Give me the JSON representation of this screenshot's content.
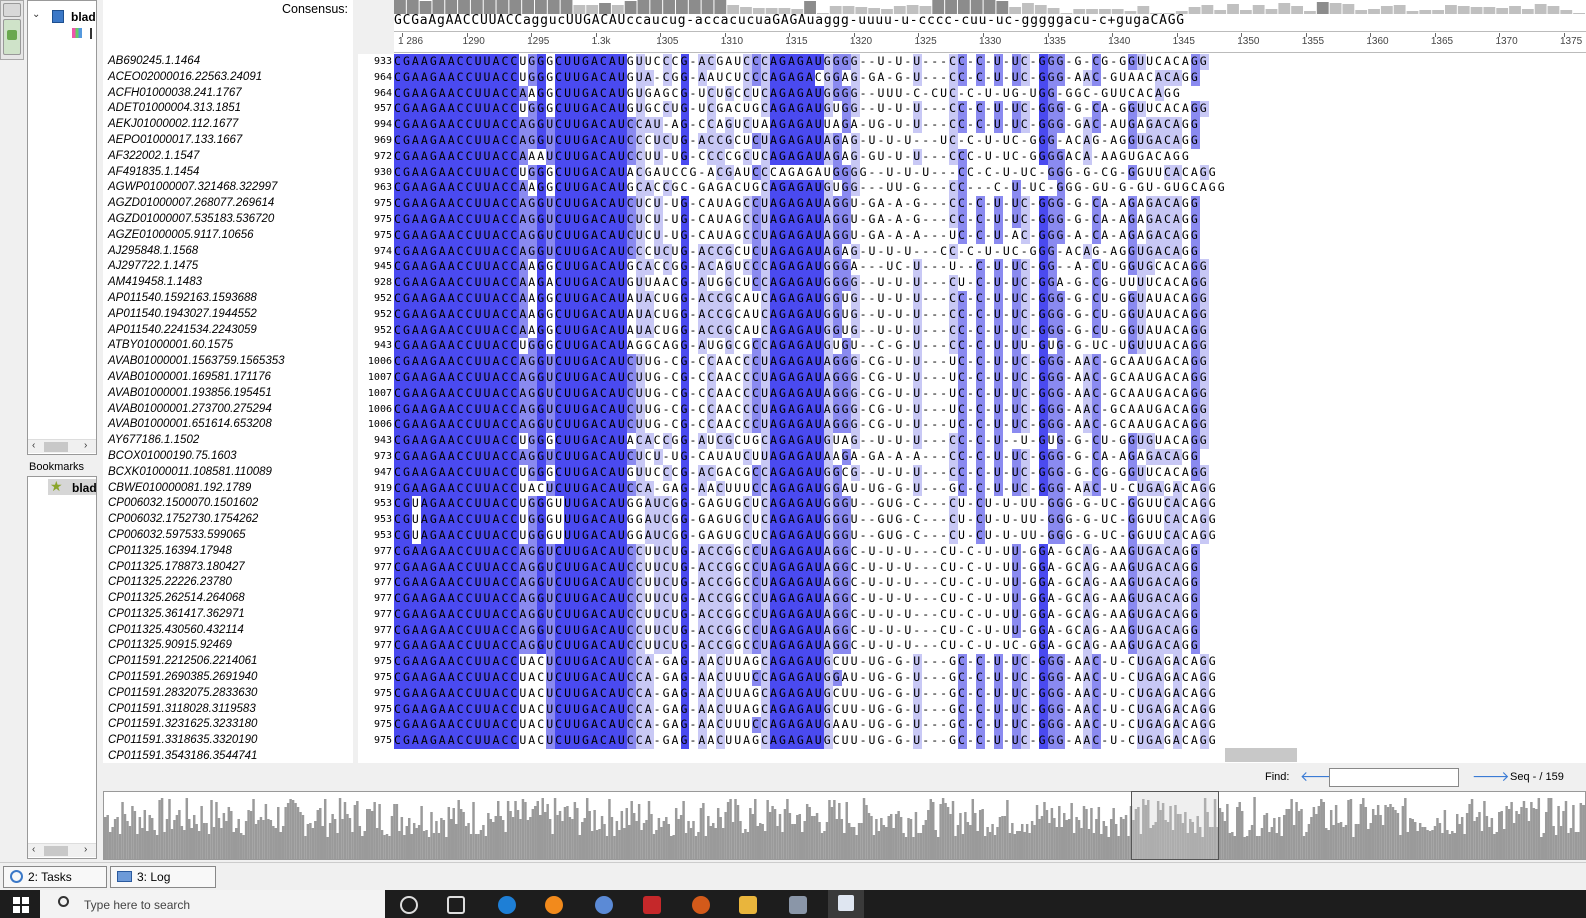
{
  "consensus": {
    "label": "Consensus:",
    "sequence": "GCGaAgAACCUUACCaggucUUGACAUccaucug-accacucuaGAGAuaggg-uuuu-u-cccc-cuu-uc-gggggacu-c+gugaCAGG"
  },
  "ruler": {
    "ticks": [
      "1 286",
      "1290",
      "1295",
      "1.3k",
      "1305",
      "1310",
      "1315",
      "1320",
      "1325",
      "1330",
      "1335",
      "1340",
      "1345",
      "1350",
      "1355",
      "1360",
      "1365",
      "1370",
      "1375"
    ]
  },
  "left_panel": {
    "object_label": "blad",
    "bookmarks_header": "Bookmarks",
    "bookmark_label": "blad"
  },
  "sequences": [
    {
      "name": "AB690245.1.1464",
      "start": "933"
    },
    {
      "name": "ACEO02000016.22563.24091",
      "start": "964"
    },
    {
      "name": "ACFH01000038.241.1767",
      "start": "964"
    },
    {
      "name": "ADET01000004.313.1851",
      "start": "957"
    },
    {
      "name": "AEKJ01000002.112.1677",
      "start": "994"
    },
    {
      "name": "AEPO01000017.133.1667",
      "start": "969"
    },
    {
      "name": "AF322002.1.1547",
      "start": "972"
    },
    {
      "name": "AF491835.1.1454",
      "start": "930"
    },
    {
      "name": "AGWP01000007.321468.322997",
      "start": "963"
    },
    {
      "name": "AGZD01000007.268077.269614",
      "start": "975"
    },
    {
      "name": "AGZD01000007.535183.536720",
      "start": "975"
    },
    {
      "name": "AGZE01000005.9117.10656",
      "start": "975"
    },
    {
      "name": "AJ295848.1.1568",
      "start": "974"
    },
    {
      "name": "AJ297722.1.1475",
      "start": "945"
    },
    {
      "name": "AM419458.1.1483",
      "start": "928"
    },
    {
      "name": "AP011540.1592163.1593688",
      "start": "952"
    },
    {
      "name": "AP011540.1943027.1944552",
      "start": "952"
    },
    {
      "name": "AP011540.2241534.2243059",
      "start": "952"
    },
    {
      "name": "ATBY01000001.60.1575",
      "start": "943"
    },
    {
      "name": "AVAB01000001.1563759.1565353",
      "start": "1006"
    },
    {
      "name": "AVAB01000001.169581.171176",
      "start": "1007"
    },
    {
      "name": "AVAB01000001.193856.195451",
      "start": "1007"
    },
    {
      "name": "AVAB01000001.273700.275294",
      "start": "1006"
    },
    {
      "name": "AVAB01000001.651614.653208",
      "start": "1006"
    },
    {
      "name": "AY677186.1.1502",
      "start": "943"
    },
    {
      "name": "BCOX01000190.75.1603",
      "start": "973"
    },
    {
      "name": "BCXK01000011.108581.110089",
      "start": "947"
    },
    {
      "name": "CBWE010000081.192.1789",
      "start": "919"
    },
    {
      "name": "CP006032.1500070.1501602",
      "start": "953"
    },
    {
      "name": "CP006032.1752730.1754262",
      "start": "953"
    },
    {
      "name": "CP006032.597533.599065",
      "start": "953"
    },
    {
      "name": "CP011325.16394.17948",
      "start": "977"
    },
    {
      "name": "CP011325.178873.180427",
      "start": "977"
    },
    {
      "name": "CP011325.22226.23780",
      "start": "977"
    },
    {
      "name": "CP011325.262514.264068",
      "start": "977"
    },
    {
      "name": "CP011325.361417.362971",
      "start": "977"
    },
    {
      "name": "CP011325.430560.432114",
      "start": "977"
    },
    {
      "name": "CP011325.90915.92469",
      "start": "977"
    },
    {
      "name": "CP011591.2212506.2214061",
      "start": "975"
    },
    {
      "name": "CP011591.2690385.2691940",
      "start": "975"
    },
    {
      "name": "CP011591.2832075.2833630",
      "start": "975"
    },
    {
      "name": "CP011591.3118028.3119583",
      "start": "975"
    },
    {
      "name": "CP011591.3231625.3233180",
      "start": "975"
    },
    {
      "name": "CP011591.3318635.3320190",
      "start": "975"
    },
    {
      "name": "CP011591.3543186.3544741",
      "start": ""
    }
  ],
  "rows": [
    "CGAAGAACCUUACCUGGGCUUGACAUGUUCCCG-ACGAUCCCAGAGAUGGGG--U-U-U---CC-C-U-UC-GGG-G-CG-GGUUCACAGG",
    "CGAAGAACCUUACCUGGGCUUGACAUGUA-CGG-AAUCUCCCAGAGACGGAG-GA-G-U---CC-C-U-UC-GGG-AAC-GUAACACAGG",
    "CGAAGAACCUUACCAAGGCUUGACAUGUGAGCG-UCUGCCUCAGAGAUGGGG--UUU-C-CUC-C-U-UG-UGG-GGC-GUUCACAGG",
    "CGAAGAACCUUACCUGGGCUUGACAUGUGCCUG-UCGACUGCAGAGAUGUGG--U-U-U---CC-C-U-UC-GGG-G-CA-GGUUCACAGG",
    "CGAAGAACCUUACCAGGUCUUGACAUCCAU-AG-CCAGUCUAAGAGAUUAGA-UG-U-U---CC-C-U-UC-GGG-GAC-AUGAGACAGG",
    "CGAAGAACCUUACCAGGUCUUGACAUCCCUCUG-ACCGCUCUAGAGAUAGAG-U-U-U---UC-C-U-UC-GGG-ACAG-AGGUGACAGG",
    "CGAAGAACCUUACCAAAUCUUGACAUCCUU-UG-CCCCGCUCAGAGAUAGAG-GU-U-U---CCC-U-UC-GGGGACA-AAGUGACAGG",
    "CGAAGAACCUUACCUGGGCUUGACAUACGAUCCG-ACGAUCCCAGAGAUGGGG--U-U-U---CC-C-U-UC-GGG-G-CG-GGUUCACAGG",
    "CGAAGAACCUUACCAAGGCUUGACAUGCACCGC-GAGACUGCAGAGAUGUGG---UU-G---CC---C-U-UC-GGG-GU-G-GU-GUGCAGG",
    "CGAAGAACCUUACCAGGUCUUGACAUCUCU-UG-CAUAGCCUAGAGAUAGGU-GA-A-G---CC-C-U-UC-GGG-G-CA-AGAGACAGG",
    "CGAAGAACCUUACCAGGUCUUGACAUCUCU-UG-CAUAGCCUAGAGAUAGGU-GA-A-G---CC-C-U-UC-GGG-G-CA-AGAGACAGG",
    "CGAAGAACCUUACCAGGUCUUGACAUCUCU-UG-CAUAGCCUAGAGAUAGGU-GA-A-A---UC-C-U-AC-GGG-A-CA-AGAGACAGG",
    "CGAAGAACCUUACCAGGUCUUGACAUCCCUCUG-ACCGCUCUAGAGAUAGAG-U-U-U---CC-C-U-UC-GGG-ACAG-AGGUGACAGG",
    "CGAAGAACCUUACCAAGGCUUGACAUGCACCGG-ACAGUCCCAGAGAUGGGA---UC-U---U--C-U-UC-GG--A-CU-GGUGCACAGG",
    "CGAAGAACCUUACCAAGACUUGACAUGUUAACG-AUGGCUCCAGAGAUGGGG--U-U-U---CU-C-U-UC-GGA-G-CG-UUUUCACAGG",
    "CGAAGAACCUUACCAAGGCUUGACAUAUACUGG-ACCGCAUCAGAGAUGGUG--U-U-U---CC-C-U-UC-GGG-G-CU-GGUAUACAGG",
    "CGAAGAACCUUACCAAGGCUUGACAUAUACUGG-ACCGCAUCAGAGAUGGUG--U-U-U---CC-C-U-UC-GGG-G-CU-GGUAUACAGG",
    "CGAAGAACCUUACCAAGGCUUGACAUAUACUGG-ACCGCAUCAGAGAUGGUG--U-U-U---CC-C-U-UC-GGG-G-CU-GGUAUACAGG",
    "CGAAGAACCUUACCUGGGCUUGACAUAGGCAGG-AUGGCGCCAGAGAUGUGU--C-G-U---CC-C-U-UU-GUG-G-UC-UGUUUACAGG",
    "CGAAGAACCUUACCAGGUCUUGACAUCUUG-CG-CCAACCCUAGAGAUAGGG-CG-U-U---UC-C-U-UC-GGG-AAC-GCAAUGACAGG",
    "CGAAGAACCUUACCAGGUCUUGACAUCUUG-CG-CCAACCCUAGAGAUAGGG-CG-U-U---UC-C-U-UC-GGG-AAC-GCAAUGACAGG",
    "CGAAGAACCUUACCAGGUCUUGACAUCUUG-CG-CCAACCCUAGAGAUAGGG-CG-U-U---UC-C-U-UC-GGG-AAC-GCAAUGACAGG",
    "CGAAGAACCUUACCAGGUCUUGACAUCUUG-CG-CCAACCCUAGAGAUAGGG-CG-U-U---UC-C-U-UC-GGG-AAC-GCAAUGACAGG",
    "CGAAGAACCUUACCAGGUCUUGACAUCUUG-CG-CCAACCCUAGAGAUAGGG-CG-U-U---UC-C-U-UC-GGG-AAC-GCAAUGACAGG",
    "CGAAGAACCUUACCUGGGCUUGACAUACACCGG-AUCGCUGCAGAGAUGUAG--U-U-U---CC-C-U--U-GUG-G-CU-GGUGUACAGG",
    "CGAAGAACCUUACCAGGUCUUGACAUCUCU-UG-CAUAUCUUAGAGAUAAGA-GA-A-A---CC-C-U-UC-GGG-G-CA-AGAGACAGG",
    "CGAAGAACCUUACCUGGGCUUGACAUGUUCCCG-ACGACGCCAGAGAUGGCG--U-U-U---CC-C-U-UC-GGG-G-CG-GGUUCACAGG",
    "CGAAGAACCUUACCUACUCUUGACAUCCA-GAG-AACUUUCCAGAGAUGGAU-UG-G-U---GC-C-U-UC-GGG-AAC-U-CUGAGACAGG",
    "CGUAGAACCUUACCUGGGUUUGACAUGGAUCGG-GAGUGCUCAGAGAUGGGU--GUG-C---CU-CU-U-UU-GGG-G-UC-GGUUCACAGG",
    "CGUAGAACCUUACCUGGGUUUGACAUGGAUCGG-GAGUGCUCAGAGAUGGGU--GUG-C---CU-CU-U-UU-GGG-G-UC-GGUUCACAGG",
    "CGUAGAACCUUACCUGGGUUUGACAUGGAUCGG-GAGUGCUCAGAGAUGGGU--GUG-C---CU-CU-U-UU-GGG-G-UC-GGUUCACAGG",
    "CGAAGAACCUUACCAGGUCUUGACAUCCUUCUG-ACCGGCCUAGAGAUAGGC-U-U-U---CU-C-U-UU-GGA-GCAG-AAGUGACAGG",
    "CGAAGAACCUUACCAGGUCUUGACAUCCUUCUG-ACCGGCCUAGAGAUAGGC-U-U-U---CU-C-U-UU-GGA-GCAG-AAGUGACAGG",
    "CGAAGAACCUUACCAGGUCUUGACAUCCUUCUG-ACCGGCCUAGAGAUAGGC-U-U-U---CU-C-U-UU-GGA-GCAG-AAGUGACAGG",
    "CGAAGAACCUUACCAGGUCUUGACAUCCUUCUG-ACCGGCCUAGAGAUAGGC-U-U-U---CU-C-U-UU-GGA-GCAG-AAGUGACAGG",
    "CGAAGAACCUUACCAGGUCUUGACAUCCUUCUG-ACCGGCCUAGAGAUAGGC-U-U-U---CU-C-U-UU-GGA-GCAG-AAGUGACAGG",
    "CGAAGAACCUUACCAGGUCUUGACAUCCUUCUG-ACCGGCCUAGAGAUAGGC-U-U-U---CU-C-U-UU-GGA-GCAG-AAGUGACAGG",
    "CGAAGAACCUUACCAGGUCUUGACAUCCUUCUG-ACCGGCCUAGAGAUAGGC-U-U-U---CU-C-U-UC-GGA-GCAG-AAGUGACAGG",
    "CGAAGAACCUUACCUACUCUUGACAUCCA-GAG-AACUUAGCAGAGAUGCUU-UG-G-U---GC-C-U-UC-GGG-AAC-U-CUGAGACAGG",
    "CGAAGAACCUUACCUACUCUUGACAUCCA-GAG-AACUUUCCAGAGAUGGAU-UG-G-U---GC-C-U-UC-GGG-AAC-U-CUGAGACAGG",
    "CGAAGAACCUUACCUACUCUUGACAUCCA-GAG-AACUUAGCAGAGAUGCUU-UG-G-U---GC-C-U-UC-GGG-AAC-U-CUGAGACAGG",
    "CGAAGAACCUUACCUACUCUUGACAUCCA-GAG-AACUUAGCAGAGAUGCUU-UG-G-U---GC-C-U-UC-GGG-AAC-U-CUGAGACAGG",
    "CGAAGAACCUUACCUACUCUUGACAUCCA-GAG-AACUUUCCAGAGAUGAAU-UG-G-U---GC-C-U-UC-GGG-AAC-U-CUGAGACAGG",
    "CGAAGAACCUUACCUACUCUUGACAUCCA-GAG-AACUUAGCAGAGAUGCUU-UG-G-U---GC-C-U-UC-GGG-AAC-U-CUGAGACAGG"
  ],
  "find": {
    "label": "Find:",
    "value": "",
    "seq_counter": "Seq - / 159"
  },
  "tabs": {
    "tasks": "2: Tasks",
    "log": "3: Log"
  },
  "taskbar": {
    "search_placeholder": "Type here to search"
  },
  "colors": {
    "identity_high": "#4a4af0",
    "identity_mid": "#8a8af0",
    "identity_low": "#c8c8f5",
    "consensus_bar": "#8c8c8c"
  }
}
